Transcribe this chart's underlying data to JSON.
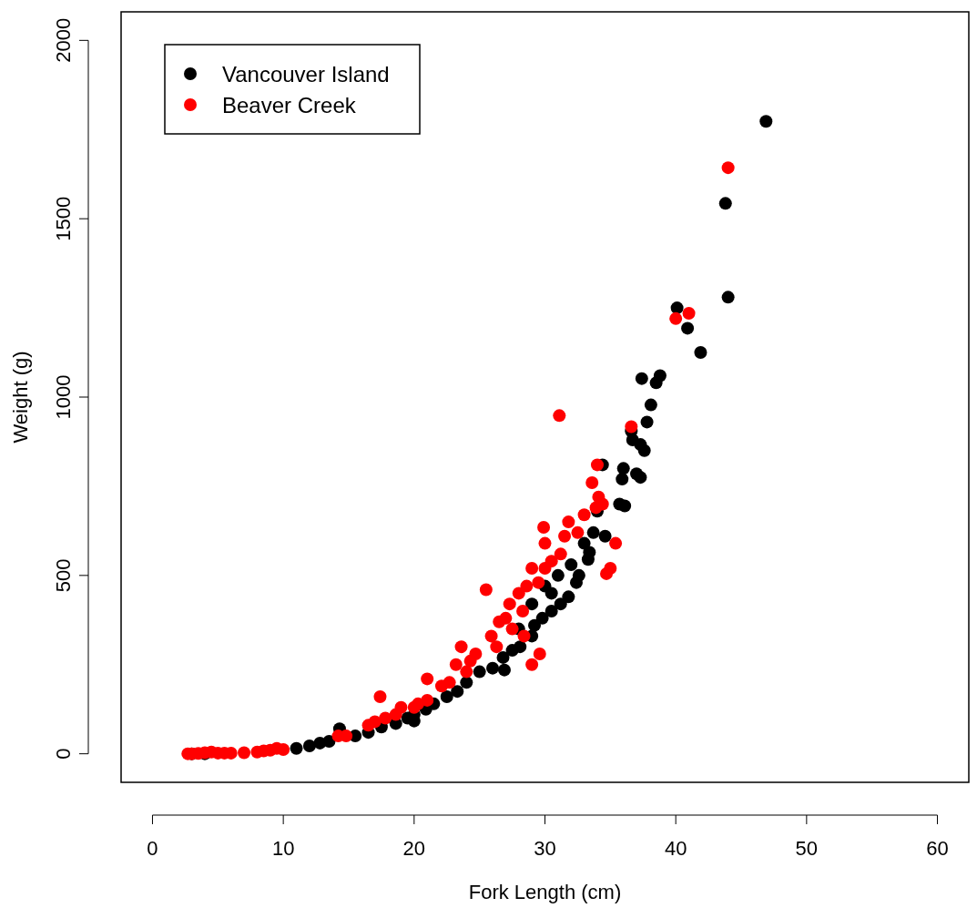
{
  "chart_data": {
    "type": "scatter",
    "xlabel": "Fork Length (cm)",
    "ylabel": "Weight (g)",
    "xlim": [
      -2.4,
      62.4
    ],
    "ylim": [
      -80,
      2080
    ],
    "xticks": [
      0,
      10,
      20,
      30,
      40,
      50,
      60
    ],
    "yticks": [
      0,
      500,
      1000,
      1500,
      2000
    ],
    "grid": false,
    "legend": "top left",
    "marker": "circle",
    "series": [
      {
        "name": "Vancouver Island",
        "color": "#000000",
        "x": [
          46.9,
          43.8,
          44.0,
          40.1,
          40.9,
          41.9,
          38.8,
          38.5,
          37.4,
          38.1,
          37.8,
          36.6,
          36.7,
          37.3,
          37.6,
          37.0,
          37.3,
          36.0,
          35.9,
          35.7,
          36.1,
          34.4,
          34.0,
          34.6,
          33.7,
          33.4,
          33.3,
          32.6,
          32.4,
          31.8,
          31.2,
          30.5,
          29.8,
          29.2,
          29.0,
          28.1,
          27.5,
          26.8,
          26.9,
          26.0,
          25.0,
          24.0,
          23.3,
          22.5,
          21.5,
          20.9,
          20.0,
          20.0,
          19.5,
          18.6,
          17.5,
          16.5,
          15.5,
          14.3,
          13.5,
          12.8,
          12.0,
          11.0,
          4.0,
          3.0,
          30.0,
          31.0,
          28.0,
          29.0,
          32.0,
          33.0,
          30.5
        ],
        "values": [
          1773,
          1543,
          1280,
          1250,
          1193,
          1125,
          1060,
          1040,
          1052,
          978,
          930,
          905,
          880,
          867,
          850,
          785,
          775,
          800,
          770,
          700,
          695,
          810,
          680,
          610,
          620,
          565,
          545,
          500,
          480,
          440,
          420,
          400,
          380,
          360,
          330,
          300,
          290,
          270,
          235,
          240,
          230,
          200,
          175,
          160,
          140,
          125,
          110,
          92,
          100,
          85,
          75,
          60,
          50,
          70,
          35,
          30,
          22,
          15,
          0,
          0,
          470,
          500,
          350,
          420,
          530,
          590,
          450
        ]
      },
      {
        "name": "Beaver Creek",
        "color": "#ff0000",
        "x": [
          44.0,
          40.0,
          41.0,
          36.6,
          31.1,
          34.0,
          33.6,
          34.1,
          34.4,
          33.9,
          35.4,
          35.0,
          34.7,
          29.9,
          30.0,
          31.5,
          31.8,
          32.5,
          33.0,
          31.2,
          30.5,
          30.0,
          29.0,
          29.5,
          28.6,
          28.0,
          28.3,
          27.3,
          27.0,
          26.5,
          25.9,
          26.3,
          25.5,
          27.5,
          28.4,
          29.6,
          29.0,
          24.7,
          24.3,
          23.6,
          23.2,
          24.0,
          22.7,
          22.1,
          21.0,
          21.0,
          20.3,
          20.0,
          19.0,
          18.6,
          17.4,
          17.8,
          17.0,
          16.5,
          14.8,
          14.2,
          10.0,
          9.5,
          9.0,
          8.0,
          7.0,
          6.0,
          5.0,
          4.5,
          4.0,
          3.5,
          3.0,
          2.7,
          5.5,
          8.5
        ],
        "values": [
          1643,
          1220,
          1235,
          917,
          948,
          810,
          760,
          720,
          700,
          690,
          590,
          520,
          505,
          635,
          590,
          610,
          650,
          620,
          670,
          560,
          540,
          520,
          520,
          480,
          470,
          450,
          400,
          420,
          380,
          370,
          330,
          300,
          460,
          350,
          330,
          280,
          250,
          280,
          260,
          300,
          250,
          230,
          200,
          190,
          210,
          150,
          140,
          130,
          130,
          110,
          160,
          100,
          90,
          80,
          50,
          50,
          12,
          15,
          10,
          5,
          3,
          2,
          2,
          5,
          3,
          1,
          0,
          0,
          2,
          8
        ]
      }
    ]
  }
}
